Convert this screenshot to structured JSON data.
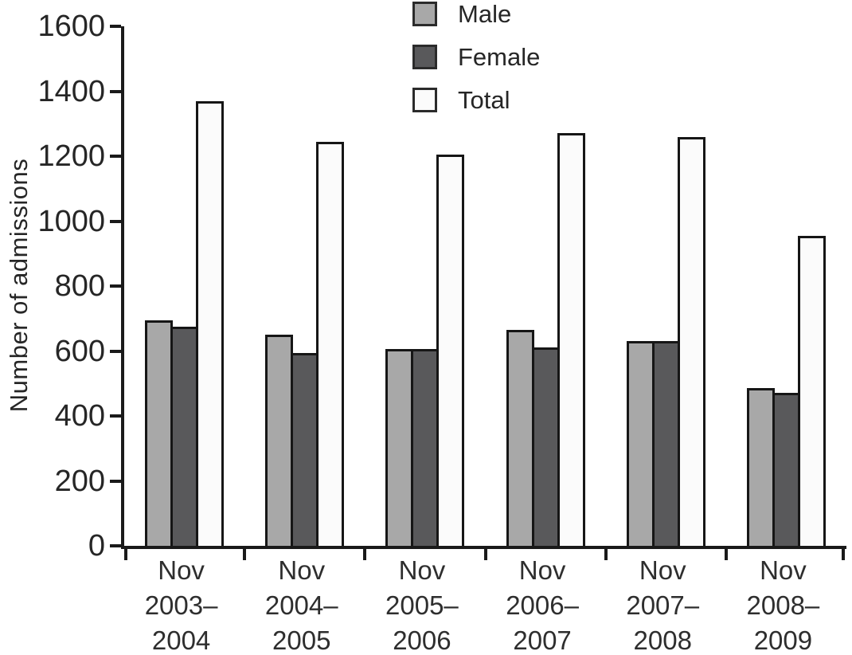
{
  "figure": {
    "ylabel": "Number of admissions"
  },
  "chart_data": {
    "type": "bar",
    "title": "",
    "xlabel": "",
    "ylabel": "Number of admissions",
    "ylim": [
      0,
      1600
    ],
    "ytick_step": 200,
    "grid": false,
    "legend_position": "top-center",
    "categories": [
      "Nov 2003–2004",
      "Nov 2004–2005",
      "Nov 2005–2006",
      "Nov 2006–2007",
      "Nov 2007–2008",
      "Nov 2008–2009"
    ],
    "category_lines": [
      [
        "Nov",
        "2003–",
        "2004"
      ],
      [
        "Nov",
        "2004–",
        "2005"
      ],
      [
        "Nov",
        "2005–",
        "2006"
      ],
      [
        "Nov",
        "2006–",
        "2007"
      ],
      [
        "Nov",
        "2007–",
        "2008"
      ],
      [
        "Nov",
        "2008–",
        "2009"
      ]
    ],
    "series": [
      {
        "name": "Male",
        "color": "#a8a8a8",
        "values": [
          695,
          650,
          605,
          665,
          630,
          485
        ]
      },
      {
        "name": "Female",
        "color": "#59595b",
        "values": [
          675,
          595,
          605,
          610,
          630,
          470
        ]
      },
      {
        "name": "Total",
        "color": "#fbfbfb",
        "values": [
          1370,
          1245,
          1205,
          1270,
          1260,
          955
        ]
      }
    ],
    "colors": {
      "axis": "#1a1a1a",
      "bar_border": "#161616",
      "text": "#262626"
    }
  }
}
